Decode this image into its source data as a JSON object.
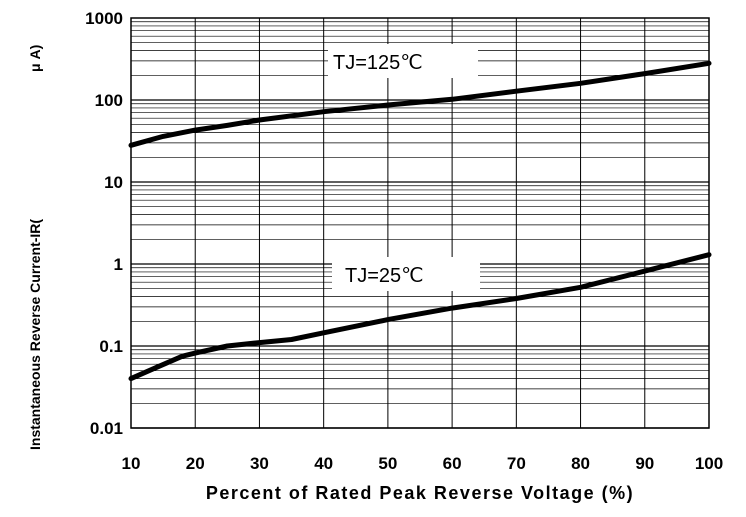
{
  "chart_data": {
    "type": "line",
    "title": "",
    "xlabel": "Percent of Rated Peak Reverse Voltage (%)",
    "ylabel": "Instantaneous Reverse Current-IR(",
    "ylabel_unit": "μ A)",
    "x_scale": "linear",
    "y_scale": "log",
    "xlim": [
      10,
      100
    ],
    "ylim": [
      0.01,
      1000
    ],
    "grid": true,
    "x_ticks": [
      "10",
      "20",
      "30",
      "40",
      "50",
      "60",
      "70",
      "80",
      "90",
      "100"
    ],
    "y_ticks": [
      "1000",
      "100",
      "10",
      "1",
      "0.1",
      "0.01"
    ],
    "series": [
      {
        "name": "TJ=125℃",
        "x": [
          10,
          15,
          20,
          25,
          30,
          40,
          50,
          60,
          70,
          80,
          90,
          100
        ],
        "values": [
          28,
          36,
          43,
          49,
          57,
          72,
          87,
          102,
          128,
          160,
          210,
          280
        ]
      },
      {
        "name": "TJ=25℃",
        "x": [
          10,
          14,
          18,
          20,
          25,
          30,
          35,
          40,
          50,
          60,
          70,
          80,
          90,
          100
        ],
        "values": [
          0.04,
          0.055,
          0.075,
          0.082,
          0.1,
          0.11,
          0.12,
          0.145,
          0.21,
          0.29,
          0.38,
          0.52,
          0.82,
          1.3
        ]
      }
    ],
    "annotations": [
      {
        "text": "TJ=125℃",
        "series": 0
      },
      {
        "text": "TJ=25℃",
        "series": 1
      }
    ]
  }
}
